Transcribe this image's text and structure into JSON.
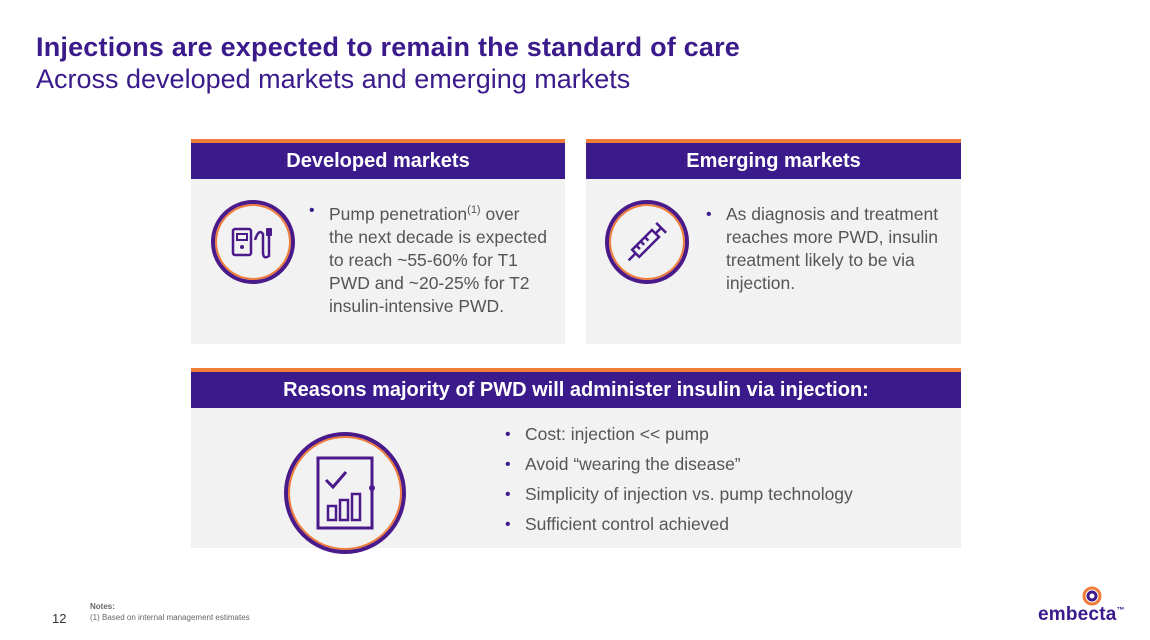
{
  "header": {
    "title": "Injections are expected to remain the standard of care",
    "subtitle": "Across developed markets and emerging markets"
  },
  "developed": {
    "heading": "Developed markets",
    "bullet_main": "Pump penetration",
    "bullet_sup": "(1)",
    "bullet_rest": " over the next decade is expected to reach ~55-60% for T1 PWD and ~20-25% for T2 insulin-intensive PWD."
  },
  "emerging": {
    "heading": "Emerging markets",
    "bullet": "As diagnosis and treatment reaches more PWD, insulin treatment likely to be via injection."
  },
  "reasons": {
    "heading": "Reasons majority of PWD will administer insulin via injection:",
    "items": [
      "Cost: injection << pump",
      "Avoid “wearing the disease”",
      "Simplicity of injection vs. pump technology",
      "Sufficient control achieved"
    ]
  },
  "footer": {
    "notes_label": "Notes:",
    "note_1": "(1) Based on internal management estimates",
    "page_number": "12",
    "logo_text": "embecta",
    "logo_tm": "™"
  },
  "colors": {
    "brand_purple": "#3b1a8c",
    "accent_orange": "#f07c3a",
    "card_bg": "#f2f2f2"
  },
  "icons": [
    "insulin-pump-icon",
    "syringe-icon",
    "chart-document-icon",
    "embecta-logo-icon"
  ]
}
